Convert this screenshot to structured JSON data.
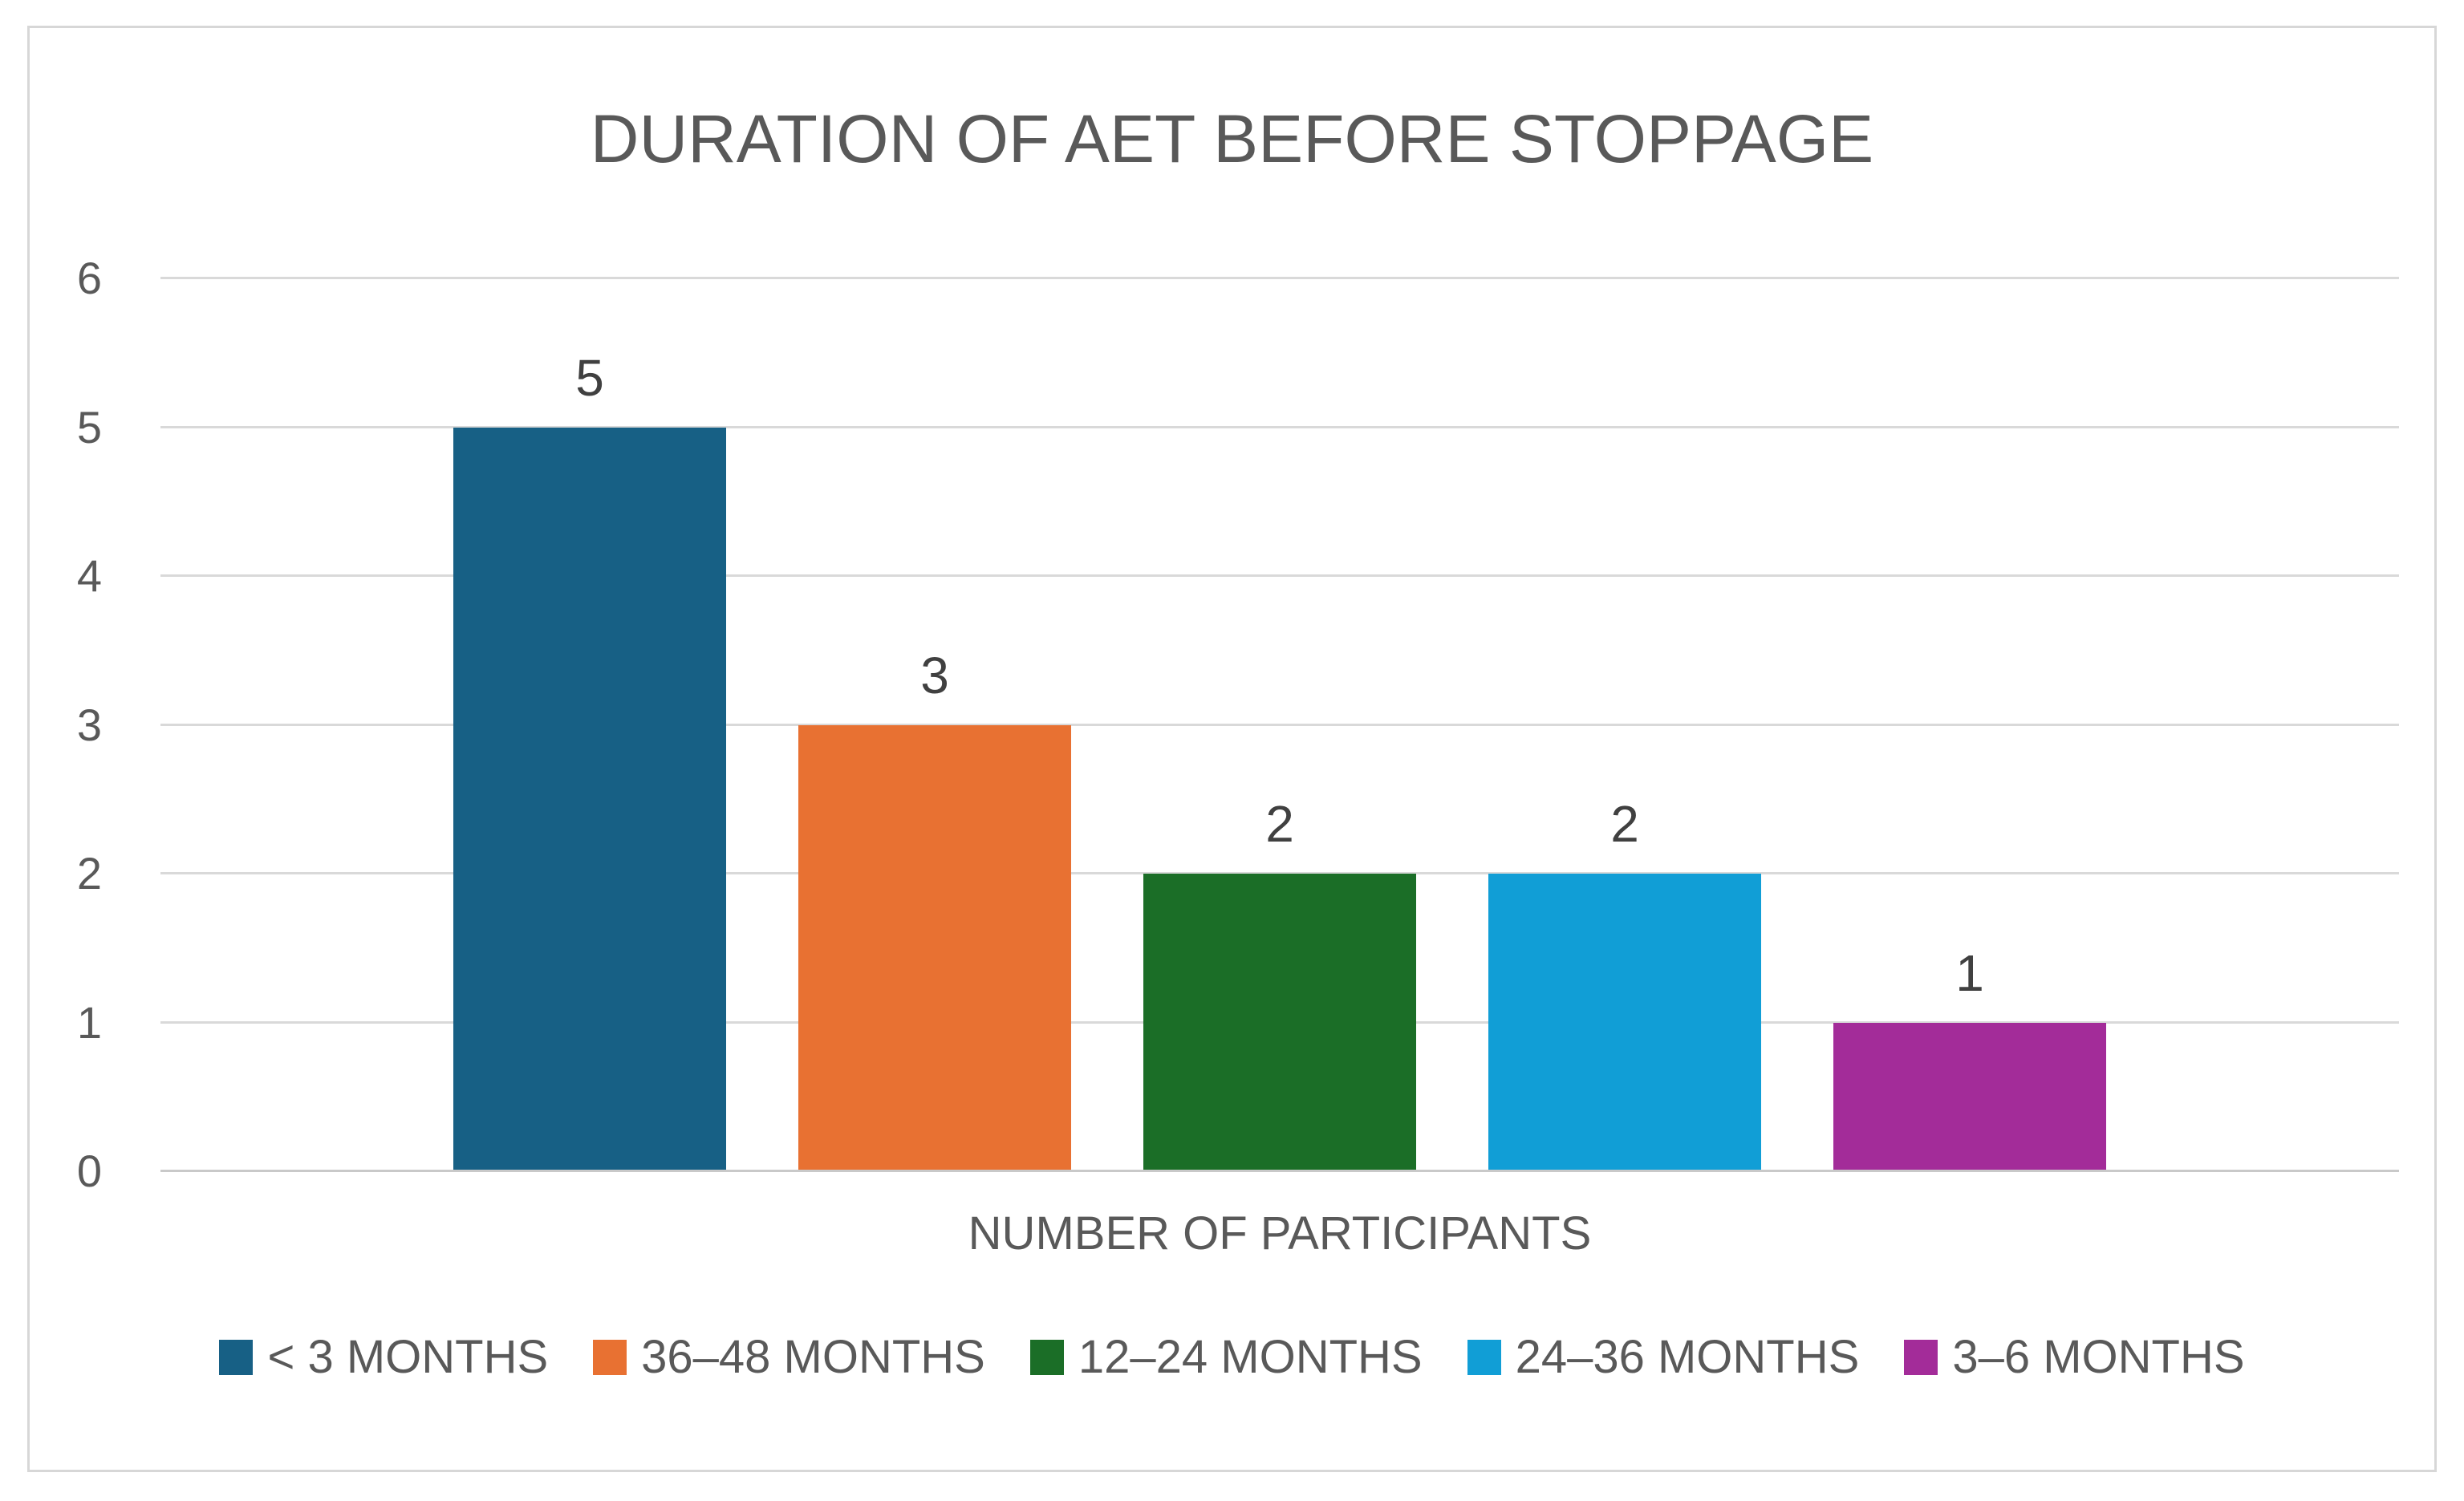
{
  "chart_data": {
    "type": "bar",
    "title": "DURATION OF AET BEFORE STOPPAGE",
    "xlabel": "NUMBER OF PARTICIPANTS",
    "ylabel": "",
    "ylim": [
      0,
      6
    ],
    "ytick_step": 1,
    "yticks": [
      "0",
      "1",
      "2",
      "3",
      "4",
      "5",
      "6"
    ],
    "grid": true,
    "legend_position": "bottom",
    "categories": [
      "< 3 MONTHS",
      "36–48 MONTHS",
      "12–24 MONTHS",
      "24–36 MONTHS",
      "3–6 MONTHS"
    ],
    "values": [
      5,
      3,
      2,
      2,
      1
    ],
    "bars": [
      {
        "label": "< 3 MONTHS",
        "value": 5,
        "color": "#176085"
      },
      {
        "label": "36–48 MONTHS",
        "value": 3,
        "color": "#E87132"
      },
      {
        "label": "12–24 MONTHS",
        "value": 2,
        "color": "#1B6E27"
      },
      {
        "label": "24–36 MONTHS",
        "value": 2,
        "color": "#119ED6"
      },
      {
        "label": "3–6 MONTHS",
        "value": 1,
        "color": "#A32C99"
      }
    ]
  },
  "styles": {
    "text_color": "#595959",
    "data_label_color": "#404040",
    "gridline_color": "#D9D9D9",
    "baseline_color": "#C9C9C9",
    "frame_border_color": "#D7D7D7",
    "background": "#FFFFFF"
  }
}
